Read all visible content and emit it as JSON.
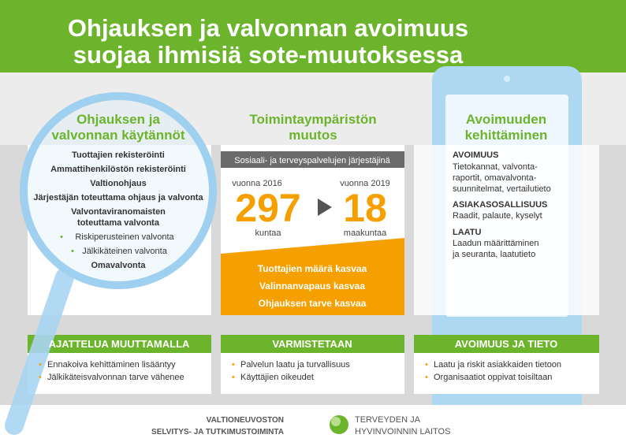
{
  "header": {
    "title": [
      "Ohjauksen ja valvonnan avoimuus",
      "suojaa ihmisiä sote-muutoksessa"
    ]
  },
  "left": {
    "heading": [
      "Ohjauksen ja",
      "valvonnan käytännöt"
    ],
    "items": [
      "Tuottajien rekisteröinti",
      "Ammattihenkilöstön rekisteröinti",
      "Valtionohjaus",
      "Järjestäjän toteuttama ohjaus ja valvonta",
      "Valvontaviranomaisten",
      "toteuttama valvonta",
      "Riskiperusteinen valvonta",
      "Jälkikäteinen valvonta",
      "Omavalvonta"
    ],
    "footer": {
      "title": "AJATTELUA MUUTTAMALLA",
      "bullets": [
        "Ennakoiva kehittäminen lisääntyy",
        "Jälkikäteisvalvonnan tarve vähenee"
      ]
    }
  },
  "middle": {
    "heading": [
      "Toimintaympäristön",
      "muutos"
    ],
    "bar": "Sosiaali- ja terveyspalvelujen järjestäjinä",
    "from": {
      "year": "vuonna 2016",
      "value": "297",
      "unit": "kuntaa"
    },
    "to": {
      "year": "vuonna 2019",
      "value": "18",
      "unit": "maakuntaa"
    },
    "results": [
      "Tuottajien määrä kasvaa",
      "Valinnanvapaus kasvaa",
      "Ohjauksen tarve kasvaa"
    ],
    "footer": {
      "title": "VARMISTETAAN",
      "bullets": [
        "Palvelun laatu ja turvallisuus",
        "Käyttäjien oikeudet"
      ]
    }
  },
  "right": {
    "heading": [
      "Avoimuuden",
      "kehittäminen"
    ],
    "sections": [
      {
        "title": "AVOIMUUS",
        "lines": [
          "Tietokannat, valvonta-",
          "raportit, omavalvonta-",
          "suunnitelmat, vertailutieto"
        ]
      },
      {
        "title": "ASIAKASOSALLISUUS",
        "lines": [
          "Raadit, palaute, kyselyt"
        ]
      },
      {
        "title": "LAATU",
        "lines": [
          "Laadun määrittäminen",
          "ja seuranta, laatutieto"
        ]
      }
    ],
    "footer": {
      "title": "AVOIMUUS JA TIETO",
      "bullets": [
        "Laatu ja riskit asiakkaiden tietoon",
        "Organisaatiot oppivat toisiltaan"
      ]
    }
  },
  "logos": {
    "vn": [
      "VALTIONEUVOSTON",
      "SELVITYS- JA TUTKIMUSTOIMINTA"
    ],
    "thl": [
      "TERVEYDEN JA",
      "HYVINVOINNIN LAITOS"
    ]
  }
}
